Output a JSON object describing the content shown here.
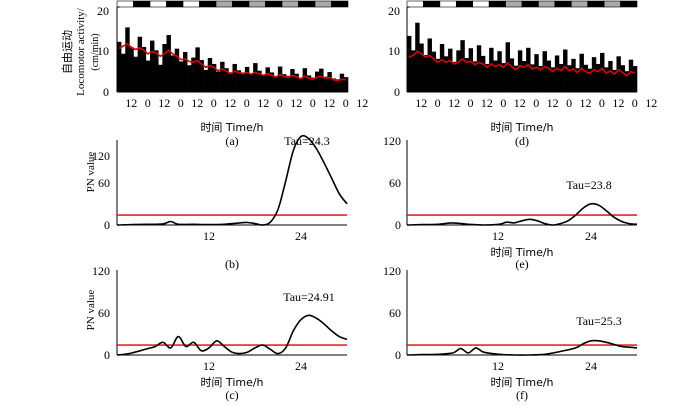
{
  "figure": {
    "panels": [
      {
        "id": "a",
        "letter": "(a)",
        "type": "actogram",
        "xlabel": "时间 Time/h",
        "ylabel_cn": "自由运动",
        "ylabel_en": "Locomotor activity/",
        "ylabel_unit": "(cm/min)",
        "yticks": [
          "0",
          "10",
          "20"
        ],
        "xticks": [
          "12",
          "0",
          "12",
          "0",
          "12",
          "0",
          "12",
          "0",
          "12",
          "0",
          "12",
          "0",
          "12",
          "0",
          "12"
        ]
      },
      {
        "id": "d",
        "letter": "(d)",
        "type": "actogram",
        "xlabel": "时间 Time/h",
        "yticks": [
          "0",
          "10",
          "20"
        ],
        "xticks": [
          "12",
          "0",
          "12",
          "0",
          "12",
          "0",
          "12",
          "0",
          "12",
          "0",
          "12",
          "0",
          "12",
          "0",
          "12"
        ]
      },
      {
        "id": "b",
        "letter": "(b)",
        "type": "periodogram",
        "xlabel": "",
        "ylabel": "PN value",
        "yticks": [
          "0",
          "60",
          "120"
        ],
        "xticks": [
          "12",
          "24"
        ],
        "tau_label": "Tau=24.3"
      },
      {
        "id": "e",
        "letter": "(e)",
        "type": "periodogram",
        "xlabel": "时间 Time/h",
        "yticks": [
          "0",
          "60",
          "120"
        ],
        "xticks": [
          "12",
          "24"
        ],
        "tau_label": "Tau=23.8"
      },
      {
        "id": "c",
        "letter": "(c)",
        "type": "periodogram",
        "xlabel": "时间 Time/h",
        "ylabel": "PN value",
        "yticks": [
          "0",
          "60",
          "120"
        ],
        "xticks": [
          "12",
          "24"
        ],
        "tau_label": "Tau=24.91"
      },
      {
        "id": "f",
        "letter": "(f)",
        "type": "periodogram",
        "xlabel": "时间 Time/h",
        "yticks": [
          "0",
          "60",
          "120"
        ],
        "xticks": [
          "12",
          "24"
        ],
        "tau_label": "Tau=25.3"
      }
    ]
  },
  "chart_data": [
    {
      "type": "bar",
      "panel": "a",
      "title": "",
      "xlabel": "时间 Time/h",
      "ylabel": "自由运动 Locomotor activity/(cm/min)",
      "ylim": [
        0,
        20
      ],
      "x_range_h": [
        0,
        180
      ],
      "light_bar": [
        "white",
        "black",
        "white",
        "black",
        "white",
        "black",
        "grey",
        "black",
        "grey",
        "black",
        "grey",
        "black",
        "grey",
        "black"
      ],
      "series": [
        {
          "name": "activity",
          "color": "#000000",
          "values": [
            11.8,
            9.0,
            15.2,
            10.5,
            8.3,
            13.0,
            10.6,
            7.4,
            12.1,
            9.8,
            6.4,
            11.3,
            13.4,
            8.6,
            10.2,
            7.2,
            9.4,
            6.3,
            8.1,
            10.5,
            7.5,
            5.2,
            8.0,
            6.6,
            4.8,
            7.1,
            5.6,
            4.3,
            6.6,
            5.1,
            4.6,
            5.9,
            4.3,
            6.8,
            5.0,
            4.1,
            5.8,
            4.6,
            3.5,
            6.0,
            4.2,
            3.8,
            5.4,
            4.3,
            3.2,
            5.6,
            3.9,
            3.4,
            4.8,
            5.5,
            3.6,
            4.7,
            3.2,
            3.0,
            4.3,
            3.5
          ]
        },
        {
          "name": "smoothed",
          "color": "#e00000",
          "values": [
            10.2,
            10.8,
            11.3,
            10.5,
            10.0,
            10.4,
            9.8,
            9.0,
            9.5,
            9.2,
            8.4,
            9.0,
            9.8,
            9.0,
            8.4,
            7.6,
            7.8,
            7.2,
            7.0,
            7.4,
            6.6,
            5.8,
            6.2,
            5.8,
            5.0,
            5.4,
            4.9,
            4.4,
            4.9,
            4.6,
            4.3,
            4.6,
            4.2,
            4.6,
            4.3,
            3.9,
            4.3,
            4.0,
            3.5,
            4.1,
            3.7,
            3.4,
            3.9,
            3.6,
            3.1,
            3.7,
            3.3,
            3.0,
            3.5,
            3.7,
            3.2,
            3.4,
            2.9,
            2.7,
            3.0,
            2.9
          ]
        }
      ]
    },
    {
      "type": "bar",
      "panel": "d",
      "title": "",
      "xlabel": "时间 Time/h",
      "ylabel": "",
      "ylim": [
        0,
        20
      ],
      "x_range_h": [
        0,
        180
      ],
      "light_bar": [
        "white",
        "black",
        "white",
        "black",
        "white",
        "black",
        "grey",
        "black",
        "grey",
        "black",
        "grey",
        "black",
        "grey",
        "black"
      ],
      "series": [
        {
          "name": "activity",
          "color": "#000000",
          "values": [
            13.2,
            9.8,
            16.3,
            11.4,
            8.7,
            12.6,
            9.5,
            7.8,
            11.3,
            8.4,
            10.2,
            7.1,
            9.8,
            12.2,
            8.0,
            10.3,
            7.2,
            11.0,
            8.5,
            6.6,
            10.4,
            7.4,
            9.6,
            6.8,
            11.7,
            7.9,
            6.2,
            9.8,
            7.3,
            10.4,
            6.5,
            8.9,
            6.1,
            9.6,
            7.4,
            5.8,
            8.6,
            6.6,
            10.0,
            6.3,
            7.8,
            5.6,
            9.0,
            6.4,
            5.5,
            8.2,
            6.6,
            9.2,
            5.8,
            7.3,
            5.2,
            8.4,
            6.3,
            4.9,
            7.6,
            6.1
          ]
        },
        {
          "name": "smoothed",
          "color": "#e00000",
          "values": [
            8.2,
            8.6,
            9.6,
            9.0,
            8.2,
            8.6,
            7.8,
            7.0,
            7.6,
            7.0,
            7.4,
            6.6,
            7.0,
            7.8,
            7.0,
            7.2,
            6.4,
            7.0,
            6.6,
            5.8,
            6.6,
            6.0,
            6.4,
            5.8,
            6.8,
            6.0,
            5.2,
            6.2,
            5.8,
            6.4,
            5.4,
            5.8,
            5.2,
            6.0,
            5.6,
            4.8,
            5.6,
            5.0,
            6.0,
            5.0,
            5.4,
            4.6,
            5.6,
            4.8,
            4.4,
            5.2,
            4.8,
            5.6,
            4.4,
            5.0,
            4.2,
            5.2,
            4.6,
            3.8,
            4.8,
            4.4
          ]
        }
      ]
    },
    {
      "type": "line",
      "panel": "b",
      "title": "",
      "xlabel": "",
      "ylabel": "PN value",
      "xlim": [
        0,
        30
      ],
      "ylim": [
        0,
        120
      ],
      "threshold": 14,
      "tau": 24.3,
      "tau_label": "Tau=24.3",
      "x": [
        0,
        2,
        4,
        6,
        7,
        8,
        10,
        12,
        14,
        16,
        17,
        18,
        19,
        20,
        21,
        22,
        23,
        24,
        25,
        26,
        27,
        28,
        29,
        30
      ],
      "y": [
        0,
        0.5,
        1,
        1.5,
        5,
        1,
        1,
        0.5,
        1,
        3,
        3.5,
        2,
        0,
        4,
        22,
        62,
        105,
        125,
        122,
        108,
        88,
        66,
        44,
        30
      ]
    },
    {
      "type": "line",
      "panel": "e",
      "title": "",
      "xlabel": "时间 Time/h",
      "ylabel": "",
      "xlim": [
        0,
        30
      ],
      "ylim": [
        0,
        120
      ],
      "threshold": 14,
      "tau": 23.8,
      "tau_label": "Tau=23.8",
      "x": [
        0,
        2,
        4,
        6,
        8,
        10,
        12,
        13,
        14,
        15,
        16,
        17,
        18,
        19,
        20,
        21,
        22,
        23,
        24,
        25,
        26,
        27,
        28,
        29,
        30
      ],
      "y": [
        0,
        0.5,
        1,
        3,
        1,
        0,
        1,
        4,
        3,
        6,
        8,
        6,
        2,
        0,
        2,
        6,
        14,
        24,
        30,
        28,
        20,
        11,
        5,
        2,
        1
      ]
    },
    {
      "type": "line",
      "panel": "c",
      "title": "",
      "xlabel": "时间 Time/h",
      "ylabel": "PN value",
      "xlim": [
        0,
        30
      ],
      "ylim": [
        0,
        120
      ],
      "threshold": 14,
      "tau": 24.91,
      "tau_label": "Tau=24.91",
      "x": [
        0,
        1,
        2,
        3,
        4,
        5,
        6,
        7,
        8,
        9,
        10,
        11,
        12,
        13,
        14,
        15,
        16,
        17,
        18,
        19,
        20,
        21,
        22,
        23,
        24,
        25,
        26,
        27,
        28,
        29,
        30
      ],
      "y": [
        0,
        1,
        3,
        6,
        9,
        12,
        18,
        10,
        26,
        12,
        18,
        6,
        10,
        20,
        12,
        4,
        2,
        4,
        10,
        14,
        8,
        2,
        10,
        34,
        50,
        56,
        52,
        44,
        34,
        26,
        22
      ]
    },
    {
      "type": "line",
      "panel": "f",
      "title": "",
      "xlabel": "时间 Time/h",
      "ylabel": "",
      "xlim": [
        0,
        30
      ],
      "ylim": [
        0,
        120
      ],
      "threshold": 14,
      "tau": 25.3,
      "tau_label": "Tau=25.3",
      "x": [
        0,
        2,
        4,
        6,
        7,
        8,
        9,
        10,
        12,
        14,
        16,
        18,
        20,
        22,
        23,
        24,
        25,
        26,
        27,
        28,
        29,
        30
      ],
      "y": [
        0,
        0.5,
        1,
        3,
        9,
        3,
        10,
        4,
        1,
        0,
        0,
        1,
        5,
        10,
        16,
        20,
        20,
        18,
        15,
        12,
        11,
        10
      ]
    }
  ]
}
